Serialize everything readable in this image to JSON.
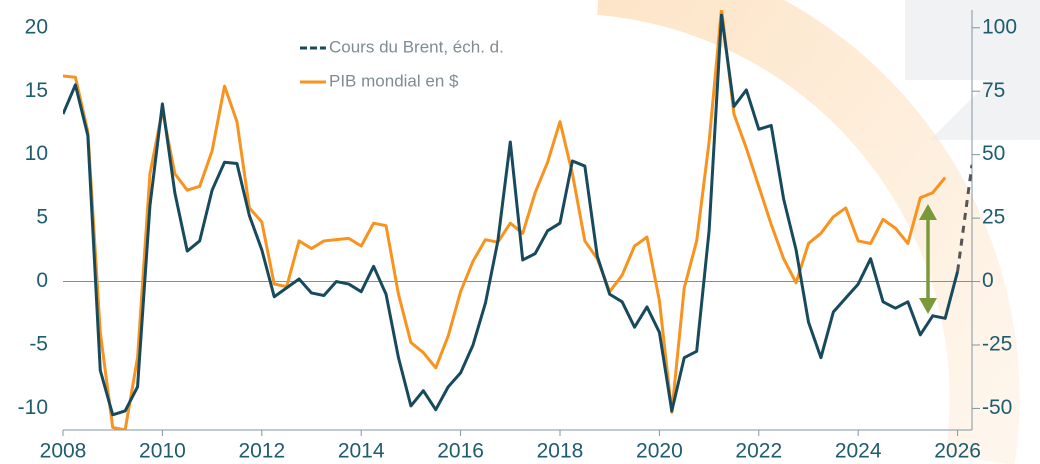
{
  "chart_data": {
    "type": "line",
    "xlim": [
      2008,
      2026.29
    ],
    "xticks": [
      2008,
      2010,
      2012,
      2014,
      2016,
      2018,
      2020,
      2022,
      2024,
      2026
    ],
    "ylim": [
      -11.7,
      21.4
    ],
    "yticks": [
      -10,
      -5,
      0,
      5,
      10,
      15,
      20
    ],
    "y2lim": [
      -58.5,
      107
    ],
    "y2ticks": [
      -50,
      -25,
      0,
      25,
      50,
      75,
      100
    ],
    "series": [
      {
        "name": "Cours du Brent, éch. d.",
        "color": "#174a5c",
        "axis": "y2",
        "x": [
          2008,
          2008.25,
          2008.5,
          2008.75,
          2009,
          2009.25,
          2009.5,
          2009.75,
          2010,
          2010.25,
          2010.5,
          2010.75,
          2011,
          2011.25,
          2011.5,
          2011.75,
          2012,
          2012.25,
          2012.5,
          2012.75,
          2013,
          2013.25,
          2013.5,
          2013.75,
          2014,
          2014.25,
          2014.5,
          2014.75,
          2015,
          2015.25,
          2015.5,
          2015.75,
          2016,
          2016.25,
          2016.5,
          2016.75,
          2017,
          2017.25,
          2017.5,
          2017.75,
          2018,
          2018.25,
          2018.5,
          2018.75,
          2019,
          2019.25,
          2019.5,
          2019.75,
          2020,
          2020.25,
          2020.5,
          2020.75,
          2021,
          2021.25,
          2021.5,
          2021.75,
          2022,
          2022.25,
          2022.5,
          2022.75,
          2023,
          2023.25,
          2023.5,
          2023.75,
          2024,
          2024.25,
          2024.5,
          2024.75,
          2025,
          2025.25,
          2025.5,
          2025.75,
          2026
        ],
        "values": [
          66,
          77.5,
          57.5,
          -35,
          -52.5,
          -51,
          -41.5,
          30,
          70,
          35,
          12,
          16,
          36,
          47,
          46.5,
          26,
          12.5,
          -6,
          -2.5,
          1,
          -4.5,
          -5.5,
          0,
          -1,
          -4,
          6,
          -5,
          -30,
          -49,
          -43,
          -50.5,
          -41.5,
          -36,
          -25,
          -8.5,
          16,
          55,
          8.5,
          11,
          20,
          23,
          47.5,
          45.5,
          10,
          -5,
          -8,
          -18,
          -10,
          -20,
          -51,
          -30,
          -27.5,
          20,
          105,
          69,
          75.5,
          60,
          61.5,
          32.5,
          12.5,
          -16,
          -30,
          -12,
          -6.5,
          -1,
          9,
          -8,
          -10.5,
          -8,
          -21,
          -13.5,
          -14.5,
          4
        ],
        "projection": {
          "x": [
            2026,
            2026.29
          ],
          "values": [
            4,
            46
          ]
        }
      },
      {
        "name": "PIB mondial en $",
        "color": "#f7931e",
        "x": [
          2008,
          2008.25,
          2008.5,
          2008.75,
          2009,
          2009.25,
          2009.5,
          2009.75,
          2010,
          2010.25,
          2010.5,
          2010.75,
          2011,
          2011.25,
          2011.5,
          2011.75,
          2012,
          2012.25,
          2012.5,
          2012.75,
          2013,
          2013.25,
          2013.5,
          2013.75,
          2014,
          2014.25,
          2014.5,
          2014.75,
          2015,
          2015.25,
          2015.5,
          2015.75,
          2016,
          2016.25,
          2016.5,
          2016.75,
          2017,
          2017.25,
          2017.5,
          2017.75,
          2018,
          2018.25,
          2018.5,
          2018.75,
          2019,
          2019.25,
          2019.5,
          2019.75,
          2020,
          2020.25,
          2020.5,
          2020.75,
          2021,
          2021.25,
          2021.5,
          2021.75,
          2022,
          2022.25,
          2022.5,
          2022.75,
          2023,
          2023.25,
          2023.5,
          2023.75,
          2024,
          2024.25,
          2024.5,
          2024.75,
          2025,
          2025.25,
          2025.5,
          2025.75
        ],
        "values": [
          16.2,
          16.1,
          11.8,
          -4,
          -11.5,
          -11.7,
          -6,
          8.5,
          13.5,
          8.5,
          7.2,
          7.5,
          10.3,
          15.4,
          12.6,
          5.8,
          4.7,
          -0.2,
          -0.4,
          3.2,
          2.6,
          3.2,
          3.3,
          3.4,
          2.8,
          4.6,
          4.4,
          -1,
          -4.8,
          -5.6,
          -6.8,
          -4.3,
          -0.8,
          1.6,
          3.3,
          3.1,
          4.6,
          3.8,
          7,
          9.4,
          12.6,
          8.5,
          3.2,
          1.8,
          -0.8,
          0.5,
          2.8,
          3.5,
          -1.5,
          -10.3,
          -0.5,
          3.2,
          11,
          21.5,
          13.2,
          10.5,
          7.5,
          4.5,
          1.8,
          -0.1,
          3,
          3.8,
          5.1,
          5.8,
          3.2,
          3,
          4.9,
          4.2,
          3,
          6.6,
          7,
          8.2
        ]
      }
    ]
  }
}
